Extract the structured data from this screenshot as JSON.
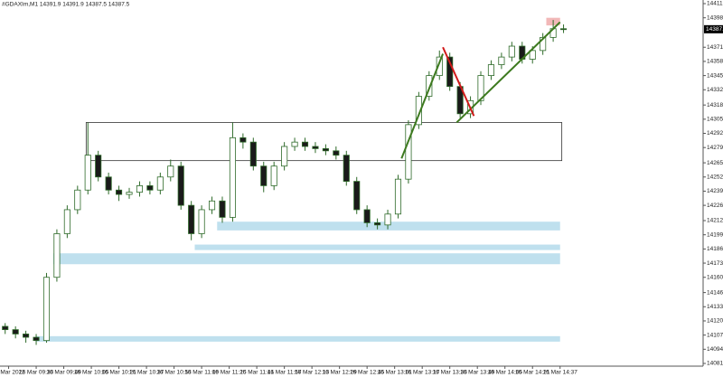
{
  "chart_data": {
    "type": "candlestick",
    "title": "#GDAXIm,M1  14391.9 14391.9 14387.5 14387.5",
    "x": [
      555,
      561,
      567,
      573,
      579,
      585,
      591,
      597,
      603,
      609,
      615,
      621,
      627,
      633,
      639,
      645,
      651,
      657,
      663,
      669,
      675,
      681,
      687,
      693,
      699,
      705,
      711,
      717,
      723,
      729,
      735,
      741,
      747,
      753,
      759,
      765,
      771,
      777,
      783,
      789,
      795,
      801,
      807,
      813,
      819,
      825,
      831,
      837,
      843,
      849,
      855,
      861,
      867,
      873,
      879
    ],
    "open": [
      14115,
      14112,
      14108,
      14105,
      14102,
      14160,
      14200,
      14222,
      14240,
      14272,
      14252,
      14240,
      14236,
      14238,
      14244,
      14240,
      14252,
      14262,
      14226,
      14200,
      14222,
      14230,
      14215,
      14288,
      14284,
      14262,
      14244,
      14262,
      14280,
      14284,
      14280,
      14278,
      14276,
      14272,
      14248,
      14222,
      14210,
      14208,
      14218,
      14250,
      14300,
      14326,
      14345,
      14362,
      14335,
      14310,
      14322,
      14345,
      14355,
      14362,
      14372,
      14360,
      14368,
      14380,
      14388
    ],
    "high": [
      14118,
      14115,
      14111,
      14108,
      14164,
      14204,
      14226,
      14244,
      14302,
      14276,
      14256,
      14244,
      14242,
      14248,
      14248,
      14256,
      14268,
      14266,
      14230,
      14226,
      14234,
      14234,
      14302,
      14292,
      14288,
      14266,
      14266,
      14284,
      14288,
      14288,
      14284,
      14282,
      14280,
      14276,
      14252,
      14226,
      14214,
      14222,
      14254,
      14304,
      14330,
      14349,
      14368,
      14366,
      14339,
      14326,
      14349,
      14359,
      14366,
      14376,
      14376,
      14372,
      14384,
      14396,
      14391.9
    ],
    "low": [
      14108,
      14104,
      14100,
      14098,
      14100,
      14156,
      14196,
      14218,
      14236,
      14248,
      14236,
      14230,
      14232,
      14234,
      14236,
      14236,
      14248,
      14222,
      14194,
      14196,
      14218,
      14210,
      14211,
      14278,
      14258,
      14238,
      14240,
      14258,
      14276,
      14276,
      14274,
      14272,
      14268,
      14244,
      14218,
      14206,
      14204,
      14204,
      14214,
      14246,
      14296,
      14322,
      14341,
      14331,
      14306,
      14306,
      14318,
      14341,
      14351,
      14358,
      14356,
      14356,
      14364,
      14376,
      14384
    ],
    "close": [
      14112,
      14108,
      14105,
      14102,
      14160,
      14200,
      14222,
      14240,
      14272,
      14252,
      14240,
      14236,
      14238,
      14244,
      14240,
      14252,
      14262,
      14226,
      14200,
      14222,
      14230,
      14215,
      14288,
      14284,
      14262,
      14244,
      14262,
      14280,
      14284,
      14280,
      14278,
      14276,
      14272,
      14248,
      14222,
      14210,
      14208,
      14218,
      14250,
      14300,
      14326,
      14345,
      14362,
      14335,
      14310,
      14322,
      14345,
      14355,
      14362,
      14372,
      14360,
      14368,
      14380,
      14388,
      14387.5
    ],
    "up_color": "#ffffff",
    "down_color": "#1a1a1a",
    "wick_color": "#2f6b2a",
    "last_price": 14387.5,
    "xlim": [
      552,
      960
    ],
    "ylim": [
      14081,
      14411
    ],
    "xticks": [
      {
        "value": 557,
        "label": "16 Mar 2022"
      },
      {
        "value": 573,
        "label": "16 Mar 09:33"
      },
      {
        "value": 589,
        "label": "16 Mar 09:49"
      },
      {
        "value": 605,
        "label": "16 Mar 10:05"
      },
      {
        "value": 621,
        "label": "16 Mar 10:21"
      },
      {
        "value": 637,
        "label": "16 Mar 10:37"
      },
      {
        "value": 653,
        "label": "16 Mar 10:53"
      },
      {
        "value": 669,
        "label": "16 Mar 11:09"
      },
      {
        "value": 685,
        "label": "16 Mar 11:25"
      },
      {
        "value": 701,
        "label": "16 Mar 11:41"
      },
      {
        "value": 717,
        "label": "16 Mar 11:57"
      },
      {
        "value": 733,
        "label": "16 Mar 12:13"
      },
      {
        "value": 749,
        "label": "16 Mar 12:29"
      },
      {
        "value": 765,
        "label": "16 Mar 12:45"
      },
      {
        "value": 781,
        "label": "16 Mar 13:01"
      },
      {
        "value": 797,
        "label": "16 Mar 13:17"
      },
      {
        "value": 813,
        "label": "16 Mar 13:33"
      },
      {
        "value": 829,
        "label": "16 Mar 13:49"
      },
      {
        "value": 845,
        "label": "16 Mar 14:05"
      },
      {
        "value": 861,
        "label": "16 Mar 14:21"
      },
      {
        "value": 877,
        "label": "16 Mar 14:37"
      }
    ],
    "yticks": [
      {
        "value": 14411,
        "label": "14411.0"
      },
      {
        "value": 14398,
        "label": "14398.0"
      },
      {
        "value": 14371,
        "label": "14371.0"
      },
      {
        "value": 14358,
        "label": "14358.0"
      },
      {
        "value": 14345,
        "label": "14345.0"
      },
      {
        "value": 14332,
        "label": "14332.0"
      },
      {
        "value": 14318,
        "label": "14318.0"
      },
      {
        "value": 14305,
        "label": "14305.0"
      },
      {
        "value": 14292,
        "label": "14292.0"
      },
      {
        "value": 14279,
        "label": "14279.0"
      },
      {
        "value": 14265,
        "label": "14265.0"
      },
      {
        "value": 14252,
        "label": "14252.0"
      },
      {
        "value": 14239,
        "label": "14239.0"
      },
      {
        "value": 14226,
        "label": "14226.0"
      },
      {
        "value": 14212,
        "label": "14212.0"
      },
      {
        "value": 14199,
        "label": "14199.0"
      },
      {
        "value": 14186,
        "label": "14186.0"
      },
      {
        "value": 14173,
        "label": "14173.0"
      },
      {
        "value": 14160,
        "label": "14160.0"
      },
      {
        "value": 14146,
        "label": "14146.0"
      },
      {
        "value": 14133,
        "label": "14133.0"
      },
      {
        "value": 14120,
        "label": "14120.0"
      },
      {
        "value": 14107,
        "label": "14107.0"
      },
      {
        "value": 14094,
        "label": "14094.0"
      },
      {
        "value": 14081,
        "label": "14081.0"
      }
    ],
    "zones": [
      {
        "x": [
          678,
          877
        ],
        "y": [
          14211,
          14203
        ],
        "color": "#bfe0ee",
        "filled": true
      },
      {
        "x": [
          665,
          877
        ],
        "y": [
          14190,
          14185
        ],
        "color": "#bfe0ee",
        "filled": true
      },
      {
        "x": [
          583,
          877
        ],
        "y": [
          14182,
          14172
        ],
        "color": "#bfe0ee",
        "filled": true
      },
      {
        "x": [
          573,
          877
        ],
        "y": [
          14106,
          14101
        ],
        "color": "#bfe0ee",
        "filled": true
      },
      {
        "x": [
          602,
          878
        ],
        "y": [
          14302,
          14267
        ],
        "color": "#333333",
        "filled": false
      },
      {
        "x": [
          869,
          877
        ],
        "y": [
          14398,
          14391
        ],
        "color": "#f2b8b8",
        "filled": true
      }
    ],
    "lines": [
      {
        "x": [
          785,
          809
        ],
        "y": [
          14269,
          14365
        ],
        "color": "#3d7a1f"
      },
      {
        "x": [
          817,
          877
        ],
        "y": [
          14302,
          14394
        ],
        "color": "#3d7a1f"
      },
      {
        "x": [
          809,
          827
        ],
        "y": [
          14371,
          14308
        ],
        "color": "#d11a1a"
      }
    ]
  }
}
